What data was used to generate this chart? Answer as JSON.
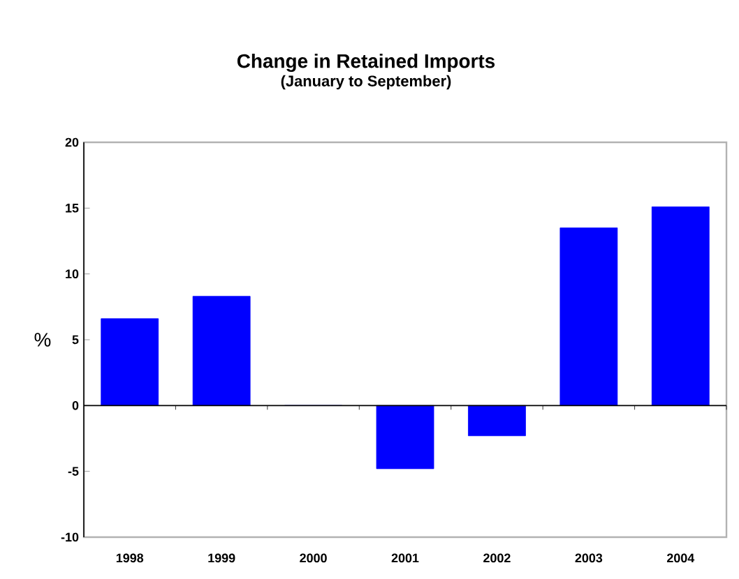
{
  "chart_data": {
    "type": "bar",
    "title": "Change in Retained Imports",
    "subtitle": "(January to September)",
    "ylabel": "%",
    "categories": [
      "1998",
      "1999",
      "2000",
      "2001",
      "2002",
      "2003",
      "2004"
    ],
    "values": [
      6.6,
      8.3,
      0,
      -4.8,
      -2.3,
      13.5,
      15.1
    ],
    "color": "#0000ff",
    "ylim": [
      -10,
      20
    ],
    "yticks": [
      -10,
      -5,
      0,
      5,
      10,
      15,
      20
    ]
  }
}
